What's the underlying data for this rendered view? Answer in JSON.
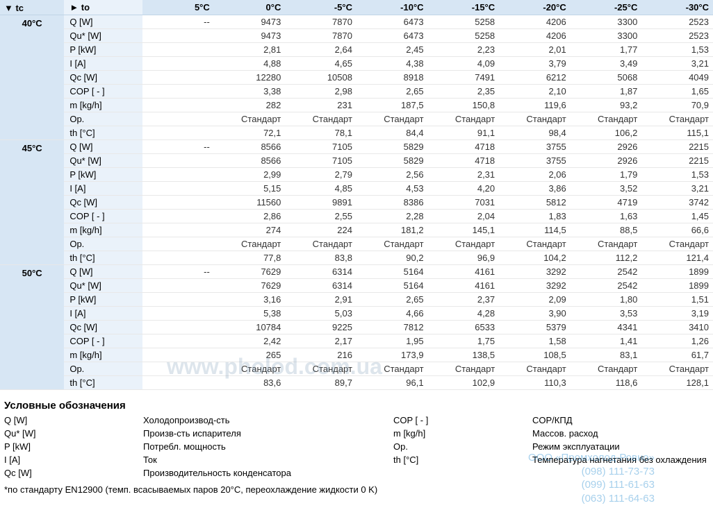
{
  "table": {
    "header": {
      "tc": "▼ tc",
      "to": "► to",
      "cols": [
        "5°C",
        "0°C",
        "-5°C",
        "-10°C",
        "-15°C",
        "-20°C",
        "-25°C",
        "-30°C"
      ]
    },
    "param_labels": [
      "Q [W]",
      "Qu* [W]",
      "P [kW]",
      "I [A]",
      "Qc [W]",
      "COP [ - ]",
      "m [kg/h]",
      "Op.",
      "th [°C]"
    ],
    "groups": [
      {
        "tc": "40°C",
        "rows": [
          [
            "--",
            "9473",
            "7870",
            "6473",
            "5258",
            "4206",
            "3300",
            "2523"
          ],
          [
            "",
            "9473",
            "7870",
            "6473",
            "5258",
            "4206",
            "3300",
            "2523"
          ],
          [
            "",
            "2,81",
            "2,64",
            "2,45",
            "2,23",
            "2,01",
            "1,77",
            "1,53"
          ],
          [
            "",
            "4,88",
            "4,65",
            "4,38",
            "4,09",
            "3,79",
            "3,49",
            "3,21"
          ],
          [
            "",
            "12280",
            "10508",
            "8918",
            "7491",
            "6212",
            "5068",
            "4049"
          ],
          [
            "",
            "3,38",
            "2,98",
            "2,65",
            "2,35",
            "2,10",
            "1,87",
            "1,65"
          ],
          [
            "",
            "282",
            "231",
            "187,5",
            "150,8",
            "119,6",
            "93,2",
            "70,9"
          ],
          [
            "",
            "Стандарт",
            "Стандарт",
            "Стандарт",
            "Стандарт",
            "Стандарт",
            "Стандарт",
            "Стандарт"
          ],
          [
            "",
            "72,1",
            "78,1",
            "84,4",
            "91,1",
            "98,4",
            "106,2",
            "115,1"
          ]
        ]
      },
      {
        "tc": "45°C",
        "rows": [
          [
            "--",
            "8566",
            "7105",
            "5829",
            "4718",
            "3755",
            "2926",
            "2215"
          ],
          [
            "",
            "8566",
            "7105",
            "5829",
            "4718",
            "3755",
            "2926",
            "2215"
          ],
          [
            "",
            "2,99",
            "2,79",
            "2,56",
            "2,31",
            "2,06",
            "1,79",
            "1,53"
          ],
          [
            "",
            "5,15",
            "4,85",
            "4,53",
            "4,20",
            "3,86",
            "3,52",
            "3,21"
          ],
          [
            "",
            "11560",
            "9891",
            "8386",
            "7031",
            "5812",
            "4719",
            "3742"
          ],
          [
            "",
            "2,86",
            "2,55",
            "2,28",
            "2,04",
            "1,83",
            "1,63",
            "1,45"
          ],
          [
            "",
            "274",
            "224",
            "181,2",
            "145,1",
            "114,5",
            "88,5",
            "66,6"
          ],
          [
            "",
            "Стандарт",
            "Стандарт",
            "Стандарт",
            "Стандарт",
            "Стандарт",
            "Стандарт",
            "Стандарт"
          ],
          [
            "",
            "77,8",
            "83,8",
            "90,2",
            "96,9",
            "104,2",
            "112,2",
            "121,4"
          ]
        ]
      },
      {
        "tc": "50°C",
        "rows": [
          [
            "--",
            "7629",
            "6314",
            "5164",
            "4161",
            "3292",
            "2542",
            "1899"
          ],
          [
            "",
            "7629",
            "6314",
            "5164",
            "4161",
            "3292",
            "2542",
            "1899"
          ],
          [
            "",
            "3,16",
            "2,91",
            "2,65",
            "2,37",
            "2,09",
            "1,80",
            "1,51"
          ],
          [
            "",
            "5,38",
            "5,03",
            "4,66",
            "4,28",
            "3,90",
            "3,53",
            "3,19"
          ],
          [
            "",
            "10784",
            "9225",
            "7812",
            "6533",
            "5379",
            "4341",
            "3410"
          ],
          [
            "",
            "2,42",
            "2,17",
            "1,95",
            "1,75",
            "1,58",
            "1,41",
            "1,26"
          ],
          [
            "",
            "265",
            "216",
            "173,9",
            "138,5",
            "108,5",
            "83,1",
            "61,7"
          ],
          [
            "",
            "Стандарт",
            "Стандарт",
            "Стандарт",
            "Стандарт",
            "Стандарт",
            "Стандарт",
            "Стандарт"
          ],
          [
            "",
            "83,6",
            "89,7",
            "96,1",
            "102,9",
            "110,3",
            "118,6",
            "128,1"
          ]
        ]
      }
    ]
  },
  "legend": {
    "title": "Условные обозначения",
    "items": [
      {
        "sym": "Q [W]",
        "desc": "Холодопроизвод-сть"
      },
      {
        "sym": "Qu* [W]",
        "desc": "Произв-сть испарителя"
      },
      {
        "sym": "P [kW]",
        "desc": "Потребл. мощность"
      },
      {
        "sym": "I [A]",
        "desc": "Ток"
      },
      {
        "sym": "Qc [W]",
        "desc": "Производительность конденсатора"
      },
      {
        "sym": "COP [ - ]",
        "desc": "COP/КПД"
      },
      {
        "sym": "m [kg/h]",
        "desc": "Массов. расход"
      },
      {
        "sym": "Op.",
        "desc": "Режим эксплуатации"
      },
      {
        "sym": "th [°C]",
        "desc": "Температура нагнетания без охлаждения"
      }
    ]
  },
  "footnote": "*по стандарту EN12900 (темп. всасываемых паров 20°C, переохлаждение жидкости 0 K)",
  "watermark1": "www.pholod.com.ua",
  "watermark2": "ООО «Промхолод-Ровно»\n(098) 111-73-73\n(099) 111-61-63\n(063) 111-64-63"
}
